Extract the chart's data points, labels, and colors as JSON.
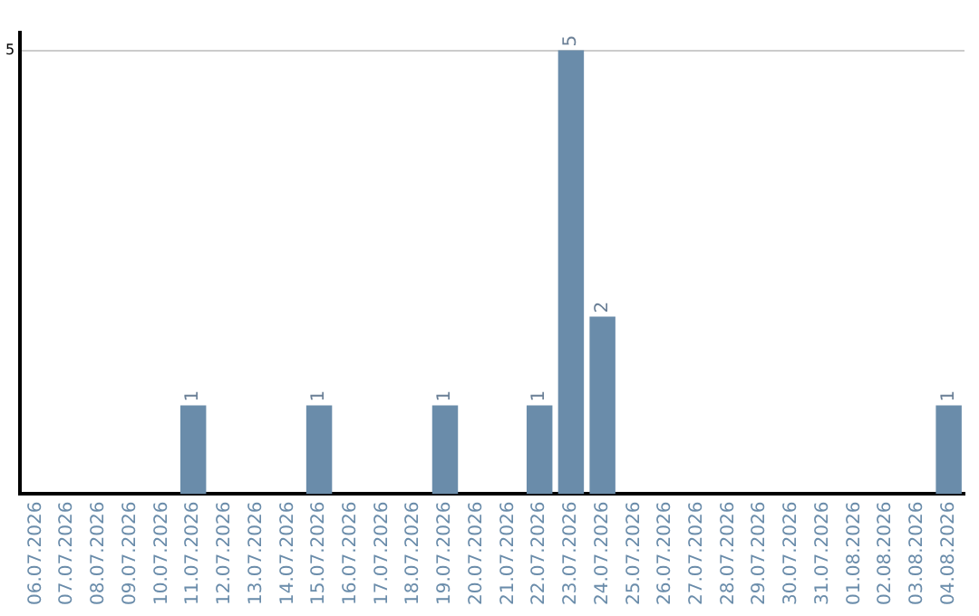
{
  "chart_data": {
    "type": "bar",
    "categories": [
      "06.07.2026",
      "07.07.2026",
      "08.07.2026",
      "09.07.2026",
      "10.07.2026",
      "11.07.2026",
      "12.07.2026",
      "13.07.2026",
      "14.07.2026",
      "15.07.2026",
      "16.07.2026",
      "17.07.2026",
      "18.07.2026",
      "19.07.2026",
      "20.07.2026",
      "21.07.2026",
      "22.07.2026",
      "23.07.2026",
      "24.07.2026",
      "25.07.2026",
      "26.07.2026",
      "27.07.2026",
      "28.07.2026",
      "29.07.2026",
      "30.07.2026",
      "31.07.2026",
      "01.08.2026",
      "02.08.2026",
      "03.08.2026",
      "04.08.2026"
    ],
    "values": [
      0,
      0,
      0,
      0,
      0,
      1,
      0,
      0,
      0,
      1,
      0,
      0,
      0,
      1,
      0,
      0,
      1,
      5,
      2,
      0,
      0,
      0,
      0,
      0,
      0,
      0,
      0,
      0,
      0,
      1
    ],
    "value_labels": [
      null,
      null,
      null,
      null,
      null,
      "1",
      null,
      null,
      null,
      "1",
      null,
      null,
      null,
      "1",
      null,
      null,
      "1",
      "5",
      "2",
      null,
      null,
      null,
      null,
      null,
      null,
      null,
      null,
      null,
      null,
      "1"
    ],
    "color": "#6a8caa",
    "ylim": [
      0,
      5.2
    ],
    "yticks": [
      5
    ],
    "grid": "y",
    "legend": false
  }
}
